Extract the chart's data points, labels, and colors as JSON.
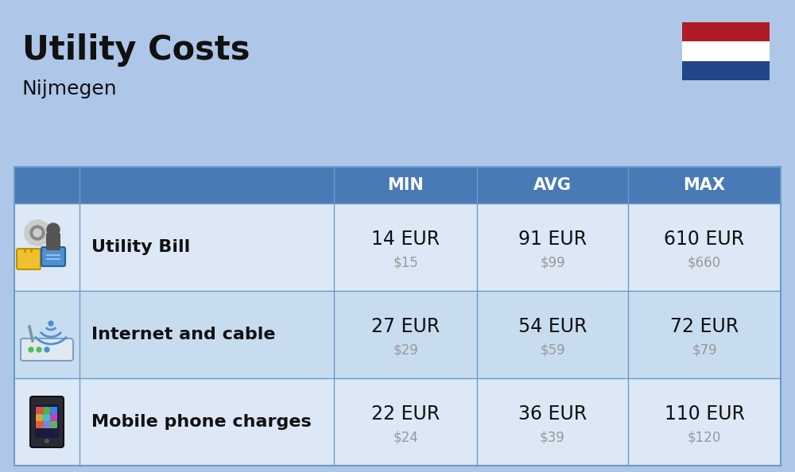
{
  "title": "Utility Costs",
  "subtitle": "Nijmegen",
  "bg_color": "#aec6e8",
  "header_color": "#4a7ab5",
  "header_text_color": "#ffffff",
  "table_border_color": "#6a9cc8",
  "row_colors": [
    "#dce8f5",
    "#c8dcf0",
    "#dce8f5"
  ],
  "columns": [
    "",
    "",
    "MIN",
    "AVG",
    "MAX"
  ],
  "rows": [
    {
      "label": "Utility Bill",
      "min_eur": "14 EUR",
      "min_usd": "$15",
      "avg_eur": "91 EUR",
      "avg_usd": "$99",
      "max_eur": "610 EUR",
      "max_usd": "$660"
    },
    {
      "label": "Internet and cable",
      "min_eur": "27 EUR",
      "min_usd": "$29",
      "avg_eur": "54 EUR",
      "avg_usd": "$59",
      "max_eur": "72 EUR",
      "max_usd": "$79"
    },
    {
      "label": "Mobile phone charges",
      "min_eur": "22 EUR",
      "min_usd": "$24",
      "avg_eur": "36 EUR",
      "avg_usd": "$39",
      "max_eur": "110 EUR",
      "max_usd": "$120"
    }
  ],
  "flag_colors": [
    "#ae1c28",
    "#ffffff",
    "#21468b"
  ],
  "eur_fontsize": 17,
  "usd_fontsize": 12,
  "label_fontsize": 16,
  "header_fontsize": 15,
  "title_fontsize": 30,
  "subtitle_fontsize": 18,
  "usd_color": "#999999",
  "text_color": "#111111"
}
